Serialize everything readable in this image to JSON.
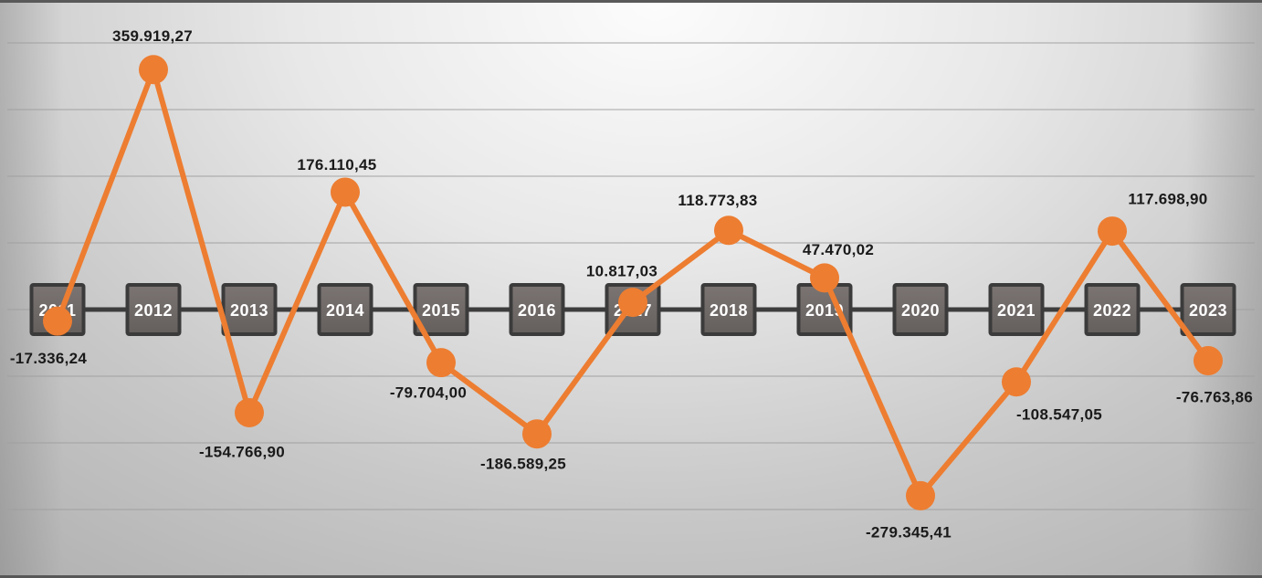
{
  "chart_data": {
    "type": "line",
    "title": "",
    "xlabel": "",
    "ylabel": "",
    "categories": [
      "2011",
      "2012",
      "2013",
      "2014",
      "2015",
      "2016",
      "2017",
      "2018",
      "2019",
      "2020",
      "2021",
      "2022",
      "2023"
    ],
    "series": [
      {
        "name": "values",
        "values": [
          -17336.24,
          359919.27,
          -154766.9,
          176110.45,
          -79704.0,
          -186589.25,
          10817.03,
          118773.83,
          47470.02,
          -279345.41,
          -108547.05,
          117698.9,
          -76763.86
        ],
        "labels": [
          "-17.336,24",
          "359.919,27",
          "-154.766,90",
          "176.110,45",
          "-79.704,00",
          "-186.589,25",
          "10.817,03",
          "118.773,83",
          "47.470,02",
          "-279.345,41",
          "-108.547,05",
          "117.698,90",
          "-76.763,86"
        ]
      }
    ],
    "ylim": [
      -400000,
      400000
    ],
    "gridline_step": 100000,
    "grid": "horizontal",
    "legend": "none",
    "colors": {
      "series_line": "#ED7D31",
      "marker_fill": "#ED7D31",
      "axis_line": "#3D3D3D",
      "year_box_fill_top": "#7B7472",
      "year_box_fill_bottom": "#645F5D",
      "year_box_border": "#3B3B3B",
      "year_text": "#FFFFFF",
      "data_label": "#1A1A1A",
      "gridline": "#9F9F9F"
    }
  }
}
